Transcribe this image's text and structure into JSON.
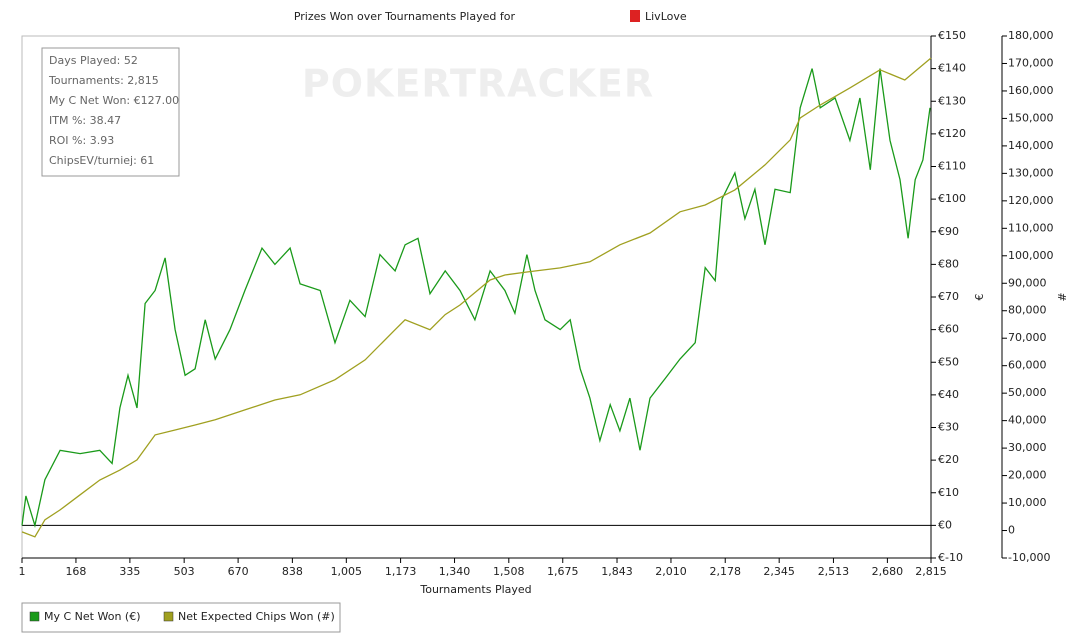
{
  "chart_data": {
    "type": "line",
    "title": "Prizes Won over Tournaments Played for",
    "title_user": "LivLove",
    "watermark": "POKERTRACKER",
    "xlabel": "Tournaments Played",
    "ylabel": "€",
    "y2label": "#",
    "xlim": [
      1,
      2815
    ],
    "xticks": [
      1,
      168,
      335,
      503,
      670,
      838,
      {
        "value": 1005,
        "label": "1,005"
      },
      {
        "value": 1173,
        "label": "1,173"
      },
      {
        "value": 1340,
        "label": "1,340"
      },
      {
        "value": 1508,
        "label": "1,508"
      },
      {
        "value": 1675,
        "label": "1,675"
      },
      {
        "value": 1843,
        "label": "1,843"
      },
      {
        "value": 2010,
        "label": "2,010"
      },
      {
        "value": 2178,
        "label": "2,178"
      },
      {
        "value": 2345,
        "label": "2,345"
      },
      {
        "value": 2513,
        "label": "2,513"
      },
      {
        "value": 2680,
        "label": "2,680"
      },
      {
        "value": 2815,
        "label": "2,815"
      }
    ],
    "ylim": [
      -10,
      150
    ],
    "yticks": [
      {
        "value": -10,
        "label": "€-10"
      },
      {
        "value": 0,
        "label": "€0"
      },
      {
        "value": 10,
        "label": "€10"
      },
      {
        "value": 20,
        "label": "€20"
      },
      {
        "value": 30,
        "label": "€30"
      },
      {
        "value": 40,
        "label": "€40"
      },
      {
        "value": 50,
        "label": "€50"
      },
      {
        "value": 60,
        "label": "€60"
      },
      {
        "value": 70,
        "label": "€70"
      },
      {
        "value": 80,
        "label": "€80"
      },
      {
        "value": 90,
        "label": "€90"
      },
      {
        "value": 100,
        "label": "€100"
      },
      {
        "value": 110,
        "label": "€110"
      },
      {
        "value": 120,
        "label": "€120"
      },
      {
        "value": 130,
        "label": "€130"
      },
      {
        "value": 140,
        "label": "€140"
      },
      {
        "value": 150,
        "label": "€150"
      }
    ],
    "y2lim": [
      -10000,
      180000
    ],
    "y2ticks": [
      {
        "value": -10000,
        "label": "-10,000"
      },
      0,
      {
        "value": 10000,
        "label": "10,000"
      },
      {
        "value": 20000,
        "label": "20,000"
      },
      {
        "value": 30000,
        "label": "30,000"
      },
      {
        "value": 40000,
        "label": "40,000"
      },
      {
        "value": 50000,
        "label": "50,000"
      },
      {
        "value": 60000,
        "label": "60,000"
      },
      {
        "value": 70000,
        "label": "70,000"
      },
      {
        "value": 80000,
        "label": "80,000"
      },
      {
        "value": 90000,
        "label": "90,000"
      },
      {
        "value": 100000,
        "label": "100,000"
      },
      {
        "value": 110000,
        "label": "110,000"
      },
      {
        "value": 120000,
        "label": "120,000"
      },
      {
        "value": 130000,
        "label": "130,000"
      },
      {
        "value": 140000,
        "label": "140,000"
      },
      {
        "value": 150000,
        "label": "150,000"
      },
      {
        "value": 160000,
        "label": "160,000"
      },
      {
        "value": 170000,
        "label": "170,000"
      },
      {
        "value": 180000,
        "label": "180,000"
      }
    ],
    "grid": false,
    "legend": "bottom-left",
    "stats": [
      "Days Played: 52",
      "Tournaments: 2,815",
      "My C Net Won: €127.00",
      "ITM %: 38.47",
      "ROI %: 3.93",
      "ChipsEV/turniej: 61"
    ],
    "series": [
      {
        "name": "My C Net Won (€)",
        "color": "#1a9a1a",
        "axis": "y",
        "x": [
          1,
          13,
          41,
          72,
          119,
          181,
          242,
          280,
          304,
          329,
          357,
          382,
          413,
          444,
          475,
          506,
          537,
          568,
          599,
          645,
          691,
          744,
          784,
          831,
          862,
          924,
          970,
          1016,
          1063,
          1109,
          1156,
          1187,
          1227,
          1264,
          1311,
          1357,
          1403,
          1450,
          1496,
          1527,
          1564,
          1589,
          1620,
          1667,
          1698,
          1729,
          1759,
          1790,
          1822,
          1852,
          1883,
          1914,
          1945,
          1992,
          2038,
          2085,
          2116,
          2147,
          2168,
          2208,
          2239,
          2270,
          2301,
          2332,
          2379,
          2410,
          2447,
          2472,
          2518,
          2564,
          2595,
          2627,
          2657,
          2688,
          2719,
          2744,
          2766,
          2790,
          2812
        ],
        "values": [
          0,
          9,
          0,
          14,
          23,
          22,
          23,
          19,
          36,
          46,
          36,
          68,
          72,
          82,
          60,
          46,
          48,
          63,
          51,
          60,
          72,
          85,
          80,
          85,
          74,
          72,
          56,
          69,
          64,
          83,
          78,
          86,
          88,
          71,
          78,
          72,
          63,
          78,
          72,
          65,
          83,
          72,
          63,
          60,
          63,
          48,
          39,
          26,
          37,
          29,
          39,
          23,
          39,
          45,
          51,
          56,
          79,
          75,
          100,
          108,
          94,
          103,
          86,
          103,
          102,
          128,
          140,
          128,
          131,
          118,
          131,
          109,
          140,
          118,
          106,
          88,
          106,
          112,
          128
        ]
      },
      {
        "name": "Net Expected Chips Won (#)",
        "color": "#a0a020",
        "axis": "y2",
        "x": [
          1,
          41,
          72,
          119,
          181,
          242,
          304,
          357,
          413,
          475,
          537,
          599,
          691,
          784,
          862,
          970,
          1063,
          1156,
          1187,
          1264,
          1311,
          1357,
          1450,
          1496,
          1564,
          1667,
          1759,
          1852,
          1945,
          2038,
          2116,
          2208,
          2301,
          2379,
          2410,
          2472,
          2564,
          2657,
          2734,
          2815
        ],
        "values": [
          -500,
          -2300,
          3900,
          7500,
          13000,
          18400,
          22000,
          25700,
          34800,
          36600,
          38400,
          40300,
          43900,
          47500,
          49400,
          54900,
          62100,
          73100,
          76700,
          73100,
          78600,
          82100,
          91200,
          93000,
          94100,
          95600,
          97800,
          104000,
          108300,
          116000,
          118500,
          124000,
          133100,
          142200,
          150200,
          154900,
          161100,
          167700,
          164000,
          172000
        ]
      }
    ]
  }
}
